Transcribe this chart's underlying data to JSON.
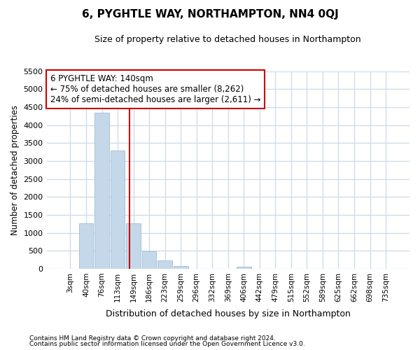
{
  "title": "6, PYGHTLE WAY, NORTHAMPTON, NN4 0QJ",
  "subtitle": "Size of property relative to detached houses in Northampton",
  "xlabel": "Distribution of detached houses by size in Northampton",
  "ylabel": "Number of detached properties",
  "bar_labels": [
    "3sqm",
    "40sqm",
    "76sqm",
    "113sqm",
    "149sqm",
    "186sqm",
    "223sqm",
    "259sqm",
    "296sqm",
    "332sqm",
    "369sqm",
    "406sqm",
    "442sqm",
    "479sqm",
    "515sqm",
    "552sqm",
    "589sqm",
    "625sqm",
    "662sqm",
    "698sqm",
    "735sqm"
  ],
  "bar_values": [
    0,
    1270,
    4350,
    3300,
    1270,
    480,
    230,
    80,
    0,
    0,
    0,
    50,
    0,
    0,
    0,
    0,
    0,
    0,
    0,
    0,
    0
  ],
  "bar_color": "#c5d8ea",
  "bar_edgecolor": "#a0bcd4",
  "vline_color": "#cc0000",
  "vline_pos": 3.73,
  "annotation_text": "6 PYGHTLE WAY: 140sqm\n← 75% of detached houses are smaller (8,262)\n24% of semi-detached houses are larger (2,611) →",
  "annotation_box_facecolor": "white",
  "annotation_box_edgecolor": "#cc0000",
  "ylim": [
    0,
    5500
  ],
  "yticks": [
    0,
    500,
    1000,
    1500,
    2000,
    2500,
    3000,
    3500,
    4000,
    4500,
    5000,
    5500
  ],
  "bg_color": "#ffffff",
  "grid_color": "#d0dce8",
  "footnote_line1": "Contains HM Land Registry data © Crown copyright and database right 2024.",
  "footnote_line2": "Contains public sector information licensed under the Open Government Licence v3.0."
}
